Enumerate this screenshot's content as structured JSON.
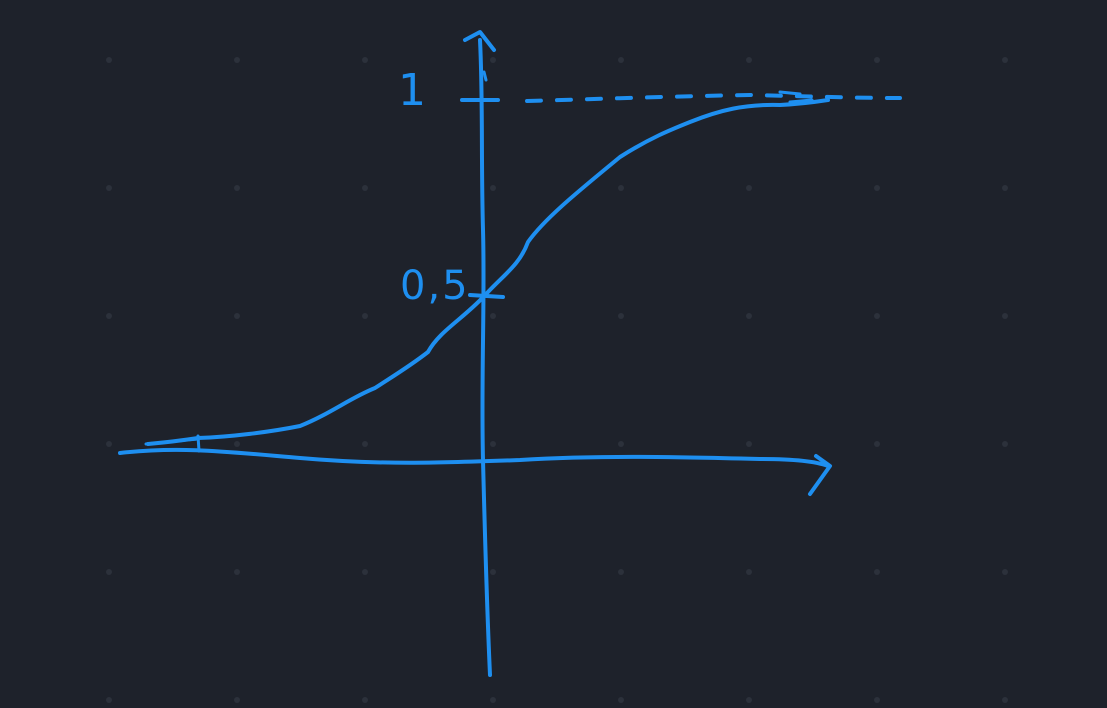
{
  "canvas": {
    "background": "#1e222b",
    "grid_dot_color": "#2c313b",
    "ink_color": "#1e8ff0"
  },
  "labels": {
    "one": "1",
    "half": "0,5"
  }
}
